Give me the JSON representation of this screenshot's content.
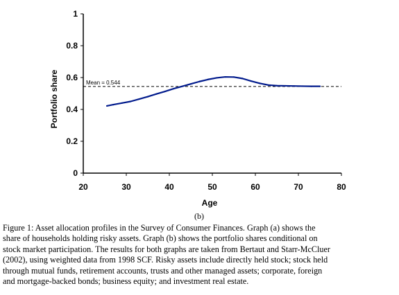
{
  "chart_data": {
    "type": "line",
    "title": "",
    "xlabel": "Age",
    "ylabel": "Portfolio share",
    "xlim": [
      20,
      80
    ],
    "ylim": [
      0,
      1
    ],
    "xticks": [
      "20",
      "30",
      "40",
      "50",
      "60",
      "70",
      "80"
    ],
    "yticks": [
      "0",
      "0.2",
      "0.4",
      "0.6",
      "0.8",
      "1"
    ],
    "grid": false,
    "series": [
      {
        "color": "#001a8c",
        "x": [
          25.5,
          27,
          29,
          31,
          33,
          35,
          37,
          39,
          41,
          43,
          45,
          47,
          49,
          51,
          53,
          55,
          57,
          59,
          61,
          63,
          65,
          67,
          69,
          71,
          73,
          75
        ],
        "y": [
          0.422,
          0.43,
          0.44,
          0.45,
          0.465,
          0.48,
          0.497,
          0.513,
          0.53,
          0.545,
          0.56,
          0.575,
          0.588,
          0.598,
          0.604,
          0.603,
          0.594,
          0.578,
          0.564,
          0.553,
          0.549,
          0.548,
          0.547,
          0.546,
          0.545,
          0.545
        ]
      }
    ],
    "reference_line": {
      "y": 0.544,
      "label": "Mean = 0.544",
      "style": "dashed"
    },
    "panel_label": "(b)"
  },
  "caption": [
    "Figure 1:  Asset allocation profiles in the Survey of Consumer Finances.  Graph (a) shows the",
    "share of households holding risky assets.  Graph (b) shows the portfolio shares conditional on",
    "stock market participation.  The results for both graphs are taken from Bertaut and Starr-McCluer",
    "(2002), using weighted data from 1998 SCF.  Risky assets include directly held stock; stock held",
    "through mutual funds, retirement accounts, trusts and other managed assets; corporate, foreign",
    "and mortgage-backed bonds; business equity; and investment real estate."
  ]
}
